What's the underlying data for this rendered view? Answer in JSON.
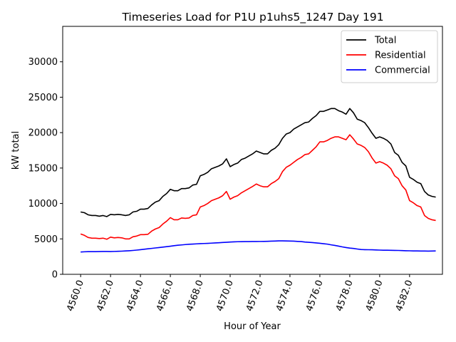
{
  "chart_data": {
    "type": "line",
    "title": "Timeseries Load for P1U p1uhs5_1247  Day 191",
    "xlabel": "Hour of Year",
    "ylabel": "kW total",
    "xlim": [
      4558.8,
      4584.2
    ],
    "ylim": [
      0,
      35000
    ],
    "xticks": [
      4560,
      4562,
      4564,
      4566,
      4568,
      4570,
      4572,
      4574,
      4576,
      4578,
      4580,
      4582
    ],
    "xtick_labels": [
      "4560.0",
      "4562.0",
      "4564.0",
      "4566.0",
      "4568.0",
      "4570.0",
      "4572.0",
      "4574.0",
      "4576.0",
      "4578.0",
      "4580.0",
      "4582.0"
    ],
    "yticks": [
      0,
      5000,
      10000,
      15000,
      20000,
      25000,
      30000
    ],
    "ytick_labels": [
      "0",
      "5000",
      "10000",
      "15000",
      "20000",
      "25000",
      "30000"
    ],
    "grid": false,
    "legend_position": "top-right",
    "x": [
      4560.0,
      4560.25,
      4560.5,
      4560.75,
      4561.0,
      4561.25,
      4561.5,
      4561.75,
      4562.0,
      4562.25,
      4562.5,
      4562.75,
      4563.0,
      4563.25,
      4563.5,
      4563.75,
      4564.0,
      4564.25,
      4564.5,
      4564.75,
      4565.0,
      4565.25,
      4565.5,
      4565.75,
      4566.0,
      4566.25,
      4566.5,
      4566.75,
      4567.0,
      4567.25,
      4567.5,
      4567.75,
      4568.0,
      4568.25,
      4568.5,
      4568.75,
      4569.0,
      4569.25,
      4569.5,
      4569.75,
      4570.0,
      4570.25,
      4570.5,
      4570.75,
      4571.0,
      4571.25,
      4571.5,
      4571.75,
      4572.0,
      4572.25,
      4572.5,
      4572.75,
      4573.0,
      4573.25,
      4573.5,
      4573.75,
      4574.0,
      4574.25,
      4574.5,
      4574.75,
      4575.0,
      4575.25,
      4575.5,
      4575.75,
      4576.0,
      4576.25,
      4576.5,
      4576.75,
      4577.0,
      4577.25,
      4577.5,
      4577.75,
      4578.0,
      4578.25,
      4578.5,
      4578.75,
      4579.0,
      4579.25,
      4579.5,
      4579.75,
      4580.0,
      4580.25,
      4580.5,
      4580.75,
      4581.0,
      4581.25,
      4581.5,
      4581.75,
      4582.0,
      4582.25,
      4582.5,
      4582.75,
      4583.0,
      4583.25,
      4583.5,
      4583.75
    ],
    "series": [
      {
        "name": "Total",
        "color": "#000000",
        "values": [
          8800,
          8700,
          8400,
          8300,
          8300,
          8200,
          8300,
          8150,
          8450,
          8400,
          8450,
          8400,
          8300,
          8400,
          8800,
          8900,
          9200,
          9200,
          9300,
          9800,
          10200,
          10400,
          11000,
          11400,
          12000,
          11800,
          11800,
          12100,
          12100,
          12200,
          12600,
          12700,
          13900,
          14100,
          14400,
          14900,
          15100,
          15300,
          15600,
          16300,
          15200,
          15500,
          15700,
          16200,
          16400,
          16700,
          17000,
          17400,
          17200,
          17000,
          17000,
          17500,
          17800,
          18300,
          19200,
          19800,
          20000,
          20500,
          20800,
          21100,
          21400,
          21500,
          22000,
          22400,
          23000,
          23000,
          23200,
          23400,
          23400,
          23100,
          22900,
          22600,
          23400,
          22800,
          21900,
          21700,
          21400,
          20700,
          19900,
          19200,
          19400,
          19200,
          18900,
          18400,
          17200,
          16800,
          15800,
          15300,
          13700,
          13400,
          13000,
          12800,
          11700,
          11200,
          11000,
          10900
        ]
      },
      {
        "name": "Residential",
        "color": "#ff0000",
        "values": [
          5700,
          5500,
          5200,
          5100,
          5100,
          5050,
          5100,
          4950,
          5250,
          5150,
          5200,
          5150,
          5000,
          5000,
          5300,
          5400,
          5600,
          5600,
          5650,
          6100,
          6400,
          6600,
          7100,
          7500,
          8000,
          7700,
          7700,
          7950,
          7900,
          7950,
          8300,
          8400,
          9500,
          9700,
          10000,
          10400,
          10600,
          10800,
          11100,
          11700,
          10600,
          10900,
          11100,
          11500,
          11800,
          12100,
          12400,
          12750,
          12500,
          12350,
          12350,
          12800,
          13100,
          13500,
          14500,
          15100,
          15400,
          15800,
          16200,
          16500,
          16900,
          17000,
          17500,
          18000,
          18700,
          18700,
          18900,
          19200,
          19400,
          19400,
          19200,
          19000,
          19700,
          19100,
          18400,
          18200,
          17900,
          17300,
          16400,
          15700,
          15900,
          15700,
          15400,
          14900,
          13900,
          13500,
          12500,
          11900,
          10400,
          10100,
          9700,
          9500,
          8300,
          7900,
          7700,
          7600
        ]
      },
      {
        "name": "Commercial",
        "color": "#0000ff",
        "values": [
          3150,
          3180,
          3200,
          3200,
          3200,
          3210,
          3220,
          3220,
          3210,
          3230,
          3250,
          3270,
          3300,
          3330,
          3370,
          3420,
          3480,
          3540,
          3600,
          3660,
          3720,
          3780,
          3840,
          3900,
          3970,
          4040,
          4100,
          4150,
          4200,
          4240,
          4270,
          4300,
          4330,
          4350,
          4370,
          4400,
          4430,
          4460,
          4490,
          4520,
          4560,
          4580,
          4600,
          4610,
          4620,
          4620,
          4630,
          4630,
          4640,
          4650,
          4660,
          4680,
          4700,
          4720,
          4720,
          4710,
          4700,
          4680,
          4650,
          4620,
          4560,
          4520,
          4480,
          4430,
          4380,
          4320,
          4260,
          4160,
          4080,
          3980,
          3870,
          3780,
          3700,
          3650,
          3570,
          3500,
          3480,
          3470,
          3460,
          3440,
          3420,
          3400,
          3400,
          3390,
          3380,
          3370,
          3350,
          3330,
          3320,
          3300,
          3300,
          3290,
          3290,
          3280,
          3290,
          3300
        ]
      }
    ]
  }
}
